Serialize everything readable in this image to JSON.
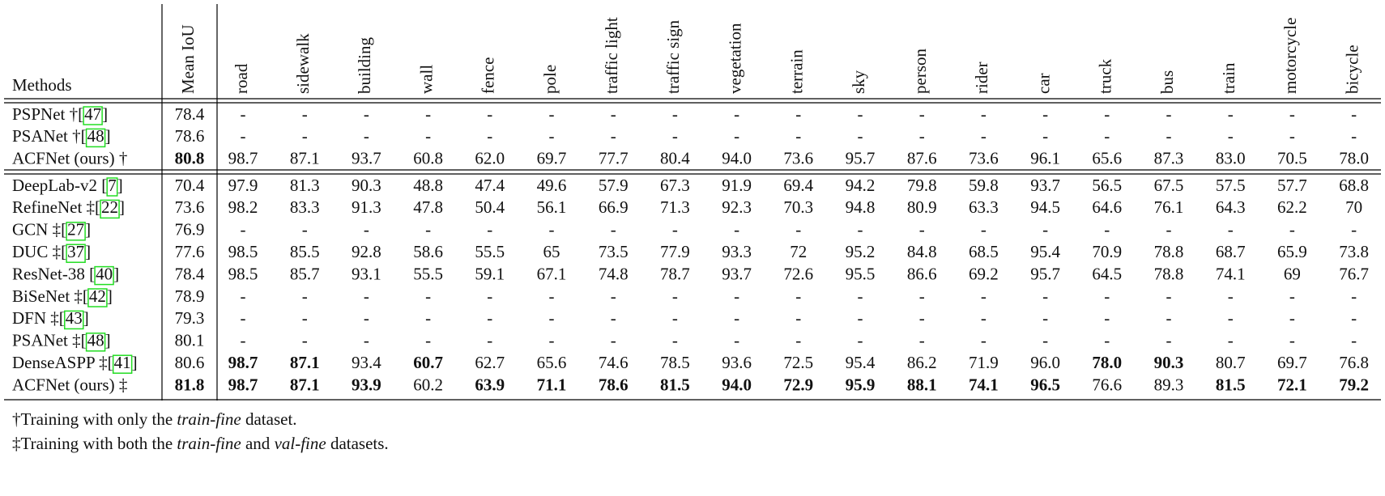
{
  "table": {
    "columns": [
      "Methods",
      "Mean IoU",
      "road",
      "sidewalk",
      "building",
      "wall",
      "fence",
      "pole",
      "traffic light",
      "traffic sign",
      "vegetation",
      "terrain",
      "sky",
      "person",
      "rider",
      "car",
      "truck",
      "bus",
      "train",
      "motorcycle",
      "bicycle"
    ],
    "groups": [
      [
        {
          "method": {
            "name": "PSPNet †[",
            "ref": "47",
            "suffix": "]"
          },
          "cells": [
            "78.4",
            "-",
            "-",
            "-",
            "-",
            "-",
            "-",
            "-",
            "-",
            "-",
            "-",
            "-",
            "-",
            "-",
            "-",
            "-",
            "-",
            "-",
            "-",
            "-",
            "-"
          ]
        },
        {
          "method": {
            "name": "PSANet †[",
            "ref": "48",
            "suffix": "]"
          },
          "cells": [
            "78.6",
            "-",
            "-",
            "-",
            "-",
            "-",
            "-",
            "-",
            "-",
            "-",
            "-",
            "-",
            "-",
            "-",
            "-",
            "-",
            "-",
            "-",
            "-",
            "-",
            "-"
          ]
        },
        {
          "method": {
            "name": "ACFNet (ours) †"
          },
          "cells": [
            "80.8",
            "98.7",
            "87.1",
            "93.7",
            "60.8",
            "62.0",
            "69.7",
            "77.7",
            "80.4",
            "94.0",
            "73.6",
            "95.7",
            "87.6",
            "73.6",
            "96.1",
            "65.6",
            "87.3",
            "83.0",
            "70.5",
            "78.0"
          ],
          "bold": [
            true,
            false,
            false,
            false,
            false,
            false,
            false,
            false,
            false,
            false,
            false,
            false,
            false,
            false,
            false,
            false,
            false,
            false,
            false,
            false
          ]
        }
      ],
      [
        {
          "method": {
            "name": "DeepLab-v2 [",
            "ref": "7",
            "suffix": "]"
          },
          "cells": [
            "70.4",
            "97.9",
            "81.3",
            "90.3",
            "48.8",
            "47.4",
            "49.6",
            "57.9",
            "67.3",
            "91.9",
            "69.4",
            "94.2",
            "79.8",
            "59.8",
            "93.7",
            "56.5",
            "67.5",
            "57.5",
            "57.7",
            "68.8"
          ]
        },
        {
          "method": {
            "name": "RefineNet ‡[",
            "ref": "22",
            "suffix": "]"
          },
          "cells": [
            "73.6",
            "98.2",
            "83.3",
            "91.3",
            "47.8",
            "50.4",
            "56.1",
            "66.9",
            "71.3",
            "92.3",
            "70.3",
            "94.8",
            "80.9",
            "63.3",
            "94.5",
            "64.6",
            "76.1",
            "64.3",
            "62.2",
            "70"
          ]
        },
        {
          "method": {
            "name": "GCN ‡[",
            "ref": "27",
            "suffix": "]"
          },
          "cells": [
            "76.9",
            "-",
            "-",
            "-",
            "-",
            "-",
            "-",
            "-",
            "-",
            "-",
            "-",
            "-",
            "-",
            "-",
            "-",
            "-",
            "-",
            "-",
            "-",
            "-"
          ]
        },
        {
          "method": {
            "name": "DUC ‡[",
            "ref": "37",
            "suffix": "]"
          },
          "cells": [
            "77.6",
            "98.5",
            "85.5",
            "92.8",
            "58.6",
            "55.5",
            "65",
            "73.5",
            "77.9",
            "93.3",
            "72",
            "95.2",
            "84.8",
            "68.5",
            "95.4",
            "70.9",
            "78.8",
            "68.7",
            "65.9",
            "73.8"
          ]
        },
        {
          "method": {
            "name": "ResNet-38 [",
            "ref": "40",
            "suffix": "]"
          },
          "cells": [
            "78.4",
            "98.5",
            "85.7",
            "93.1",
            "55.5",
            "59.1",
            "67.1",
            "74.8",
            "78.7",
            "93.7",
            "72.6",
            "95.5",
            "86.6",
            "69.2",
            "95.7",
            "64.5",
            "78.8",
            "74.1",
            "69",
            "76.7"
          ]
        },
        {
          "method": {
            "name": "BiSeNet ‡[",
            "ref": "42",
            "suffix": "]"
          },
          "cells": [
            "78.9",
            "-",
            "-",
            "-",
            "-",
            "-",
            "-",
            "-",
            "-",
            "-",
            "-",
            "-",
            "-",
            "-",
            "-",
            "-",
            "-",
            "-",
            "-",
            "-"
          ]
        },
        {
          "method": {
            "name": "DFN ‡[",
            "ref": "43",
            "suffix": "]"
          },
          "cells": [
            "79.3",
            "-",
            "-",
            "-",
            "-",
            "-",
            "-",
            "-",
            "-",
            "-",
            "-",
            "-",
            "-",
            "-",
            "-",
            "-",
            "-",
            "-",
            "-",
            "-"
          ]
        },
        {
          "method": {
            "name": "PSANet ‡[",
            "ref": "48",
            "suffix": "]"
          },
          "cells": [
            "80.1",
            "-",
            "-",
            "-",
            "-",
            "-",
            "-",
            "-",
            "-",
            "-",
            "-",
            "-",
            "-",
            "-",
            "-",
            "-",
            "-",
            "-",
            "-",
            "-"
          ]
        },
        {
          "method": {
            "name": "DenseASPP ‡[",
            "ref": "41",
            "suffix": "]"
          },
          "cells": [
            "80.6",
            "98.7",
            "87.1",
            "93.4",
            "60.7",
            "62.7",
            "65.6",
            "74.6",
            "78.5",
            "93.6",
            "72.5",
            "95.4",
            "86.2",
            "71.9",
            "96.0",
            "78.0",
            "90.3",
            "80.7",
            "69.7",
            "76.8"
          ],
          "bold": [
            false,
            true,
            true,
            false,
            true,
            false,
            false,
            false,
            false,
            false,
            false,
            false,
            false,
            false,
            false,
            true,
            true,
            false,
            false,
            false
          ]
        },
        {
          "method": {
            "name": "ACFNet (ours) ‡"
          },
          "cells": [
            "81.8",
            "98.7",
            "87.1",
            "93.9",
            "60.2",
            "63.9",
            "71.1",
            "78.6",
            "81.5",
            "94.0",
            "72.9",
            "95.9",
            "88.1",
            "74.1",
            "96.5",
            "76.6",
            "89.3",
            "81.5",
            "72.1",
            "79.2"
          ],
          "bold": [
            true,
            true,
            true,
            true,
            false,
            true,
            true,
            true,
            true,
            true,
            true,
            true,
            true,
            true,
            true,
            false,
            false,
            true,
            true,
            true
          ]
        }
      ]
    ]
  },
  "footnotes": [
    [
      {
        "text": "†Training with only the "
      },
      {
        "text": "train-fine",
        "italic": true
      },
      {
        "text": " dataset."
      }
    ],
    [
      {
        "text": "‡Training with both the "
      },
      {
        "text": "train-fine",
        "italic": true
      },
      {
        "text": " and "
      },
      {
        "text": "val-fine",
        "italic": true
      },
      {
        "text": " datasets."
      }
    ]
  ]
}
